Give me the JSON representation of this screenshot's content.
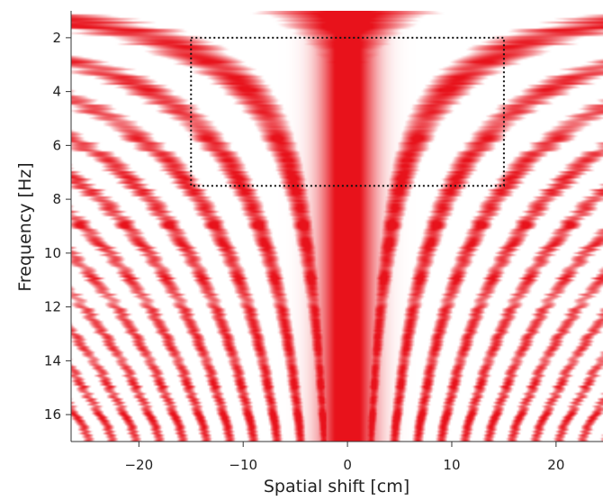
{
  "chart_data": {
    "type": "heatmap",
    "title": "",
    "xlabel": "Spatial shift [cm]",
    "ylabel": "Frequency [Hz]",
    "xlim": [
      -26.5,
      24.5
    ],
    "ylim": [
      17,
      1
    ],
    "x_ticks": [
      -20,
      -10,
      0,
      10,
      20
    ],
    "y_ticks": [
      2,
      4,
      6,
      8,
      10,
      12,
      14,
      16
    ],
    "colormap": {
      "positive": "#e8121b",
      "zero": "#ffffff",
      "negative": "#1726d6"
    },
    "center_ridge_x": 0,
    "annotation_box": {
      "x_range": [
        -15,
        15
      ],
      "y_range": [
        2,
        7.5
      ],
      "style": "dotted"
    },
    "grid": false,
    "legend": "none"
  }
}
